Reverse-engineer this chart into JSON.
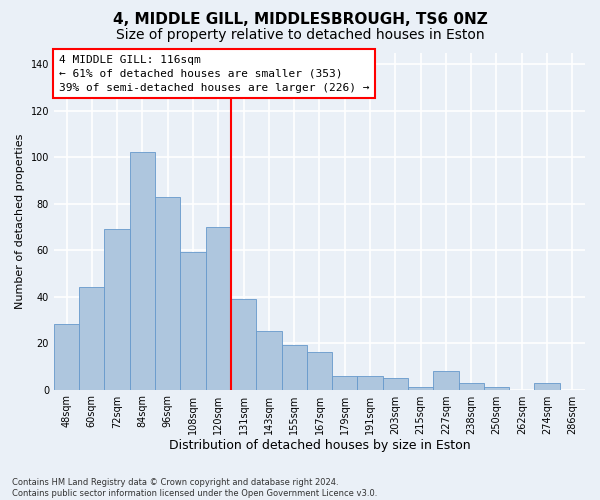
{
  "title": "4, MIDDLE GILL, MIDDLESBROUGH, TS6 0NZ",
  "subtitle": "Size of property relative to detached houses in Eston",
  "xlabel": "Distribution of detached houses by size in Eston",
  "ylabel": "Number of detached properties",
  "footnote1": "Contains HM Land Registry data © Crown copyright and database right 2024.",
  "footnote2": "Contains public sector information licensed under the Open Government Licence v3.0.",
  "categories": [
    "48sqm",
    "60sqm",
    "72sqm",
    "84sqm",
    "96sqm",
    "108sqm",
    "120sqm",
    "131sqm",
    "143sqm",
    "155sqm",
    "167sqm",
    "179sqm",
    "191sqm",
    "203sqm",
    "215sqm",
    "227sqm",
    "238sqm",
    "250sqm",
    "262sqm",
    "274sqm",
    "286sqm"
  ],
  "values": [
    28,
    44,
    69,
    102,
    83,
    59,
    70,
    39,
    25,
    19,
    16,
    6,
    6,
    5,
    1,
    8,
    3,
    1,
    0,
    3,
    0
  ],
  "bar_color": "#aec6de",
  "bar_edge_color": "#6699cc",
  "vline_x": 6.5,
  "vline_color": "red",
  "ann_line1": "4 MIDDLE GILL: 116sqm",
  "ann_line2": "← 61% of detached houses are smaller (353)",
  "ann_line3": "39% of semi-detached houses are larger (226) →",
  "ylim": [
    0,
    145
  ],
  "yticks": [
    0,
    20,
    40,
    60,
    80,
    100,
    120,
    140
  ],
  "bg_color": "#eaf0f7",
  "grid_color": "white",
  "title_fontsize": 11,
  "subtitle_fontsize": 10,
  "ylabel_fontsize": 8,
  "xlabel_fontsize": 9,
  "tick_fontsize": 7,
  "footnote_fontsize": 6
}
